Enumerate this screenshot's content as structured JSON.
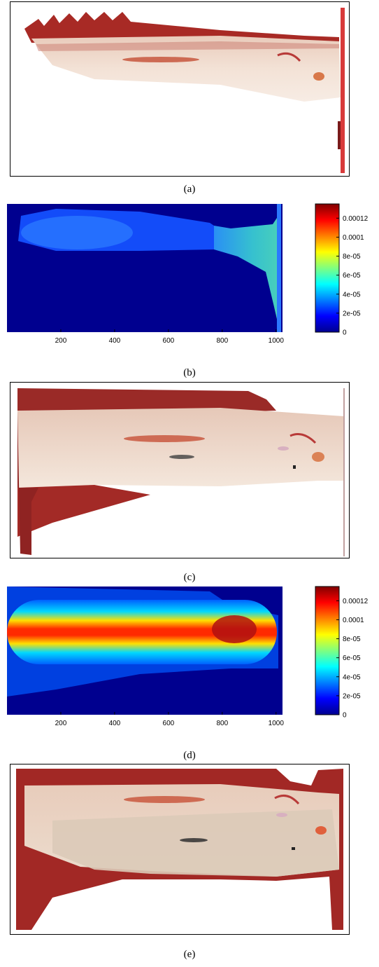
{
  "captions": [
    "(a)",
    "(b)",
    "(c)",
    "(d)",
    "(e)"
  ],
  "chart_data": [
    {
      "panel": "(b)",
      "type": "heatmap",
      "title": "",
      "xlabel": "",
      "ylabel": "",
      "x_ticks": [
        200,
        400,
        600,
        800,
        1000
      ],
      "xlim": [
        0,
        1024
      ],
      "colorbar": {
        "ticks": [
          0,
          2e-05,
          4e-05,
          6e-05,
          8e-05,
          0.0001,
          0.00012
        ],
        "tick_labels": [
          "0",
          "2e-05",
          "4e-05",
          "6e-05",
          "8e-05",
          "0.0001",
          "0.00012"
        ],
        "range": [
          0,
          0.000135
        ],
        "colormap": "jet"
      }
    },
    {
      "panel": "(d)",
      "type": "heatmap",
      "title": "",
      "xlabel": "",
      "ylabel": "",
      "x_ticks": [
        200,
        400,
        600,
        800,
        1000
      ],
      "xlim": [
        0,
        1024
      ],
      "colorbar": {
        "ticks": [
          0,
          2e-05,
          4e-05,
          6e-05,
          8e-05,
          0.0001,
          0.00012
        ],
        "tick_labels": [
          "0",
          "2e-05",
          "4e-05",
          "6e-05",
          "8e-05",
          "0.0001",
          "0.00012"
        ],
        "range": [
          0,
          0.000135
        ],
        "colormap": "jet"
      }
    }
  ]
}
